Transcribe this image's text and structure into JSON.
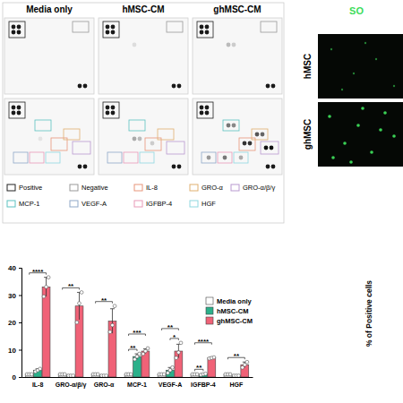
{
  "chart_data": {
    "type": "bar",
    "categories": [
      "IL-8",
      "GRO-α/β/γ",
      "GRO-α",
      "MCP-1",
      "VEGF-A",
      "IGFBP-4",
      "HGF"
    ],
    "series": [
      {
        "name": "Media only",
        "color": "#ffffff",
        "values": [
          1,
          1,
          1,
          1,
          1,
          1,
          1
        ],
        "error": [
          0,
          0,
          0,
          0,
          0,
          0,
          0
        ],
        "points": [
          [
            1,
            1,
            1
          ],
          [
            1,
            1,
            1
          ],
          [
            1,
            1,
            1
          ],
          [
            1,
            1,
            1
          ],
          [
            1,
            1,
            1
          ],
          [
            1,
            1,
            1
          ],
          [
            1,
            1,
            1
          ]
        ]
      },
      {
        "name": "hMSC-CM",
        "color": "#2bb08a",
        "values": [
          2.5,
          0.5,
          0.5,
          7.5,
          2.5,
          1,
          0.5
        ],
        "error": [
          0.5,
          0.1,
          0.1,
          1,
          1,
          0.2,
          0.1
        ],
        "points": [
          [
            2,
            2.5,
            3
          ],
          [
            0.5,
            0.5,
            0.5
          ],
          [
            0.5,
            0.5,
            0.5
          ],
          [
            6.5,
            7.5,
            8.5
          ],
          [
            1.5,
            2.5,
            3.5
          ],
          [
            0.8,
            1,
            1.2
          ],
          [
            0.5,
            0.5,
            0.5
          ]
        ]
      },
      {
        "name": "ghMSC-CM",
        "color": "#f06277",
        "values": [
          33,
          26,
          20.5,
          9.5,
          9.5,
          7,
          4.5
        ],
        "error": [
          3.5,
          5,
          4.5,
          0.8,
          2.5,
          0.3,
          1
        ],
        "points": [
          [
            29.5,
            33,
            36.5
          ],
          [
            20,
            27,
            31
          ],
          [
            16.5,
            19,
            26
          ],
          [
            8.5,
            9.5,
            10.5
          ],
          [
            7,
            9,
            12.5
          ],
          [
            6.8,
            7,
            7.2
          ],
          [
            3.5,
            4.5,
            5.5
          ]
        ]
      }
    ],
    "ylim": [
      0,
      40
    ],
    "yticks": [
      0,
      10,
      20,
      30,
      40
    ],
    "legend": "upper right",
    "annotations": [
      {
        "category": 0,
        "pair": [
          0,
          2
        ],
        "label": "****"
      },
      {
        "category": 1,
        "pair": [
          0,
          2
        ],
        "label": "**"
      },
      {
        "category": 2,
        "pair": [
          0,
          2
        ],
        "label": "**"
      },
      {
        "category": 3,
        "pair": [
          0,
          1
        ],
        "label": "**"
      },
      {
        "category": 3,
        "pair": [
          0,
          2
        ],
        "label": "***"
      },
      {
        "category": 4,
        "pair": [
          1,
          2
        ],
        "label": "*"
      },
      {
        "category": 4,
        "pair": [
          0,
          2
        ],
        "label": "**"
      },
      {
        "category": 5,
        "pair": [
          0,
          1
        ],
        "label": "**"
      },
      {
        "category": 5,
        "pair": [
          0,
          2
        ],
        "label": "****"
      },
      {
        "category": 6,
        "pair": [
          0,
          2
        ],
        "label": "**"
      }
    ]
  },
  "array_panel": {
    "columns": [
      "Media only",
      "hMSC-CM",
      "ghMSC-CM"
    ],
    "legend": [
      {
        "label": "Positive",
        "color": "#222222"
      },
      {
        "label": "Negative",
        "color": "#999999"
      },
      {
        "label": "IL-8",
        "color": "#e8967a"
      },
      {
        "label": "GRO-α",
        "color": "#e0b070"
      },
      {
        "label": "GRO-α/β/γ",
        "color": "#b99ad0"
      },
      {
        "label": "MCP-1",
        "color": "#5cc2c0"
      },
      {
        "label": "VEGF-A",
        "color": "#8fa8c8"
      },
      {
        "label": "IGFBP-4",
        "color": "#e89ab8"
      },
      {
        "label": "HGF",
        "color": "#8fd8e0"
      }
    ]
  },
  "image_panel": {
    "title": "SO",
    "color": "#3ddc5a",
    "rows": [
      "hMSC",
      "ghMSC"
    ]
  },
  "side_panel": {
    "y_label": "% of Positive cells"
  }
}
